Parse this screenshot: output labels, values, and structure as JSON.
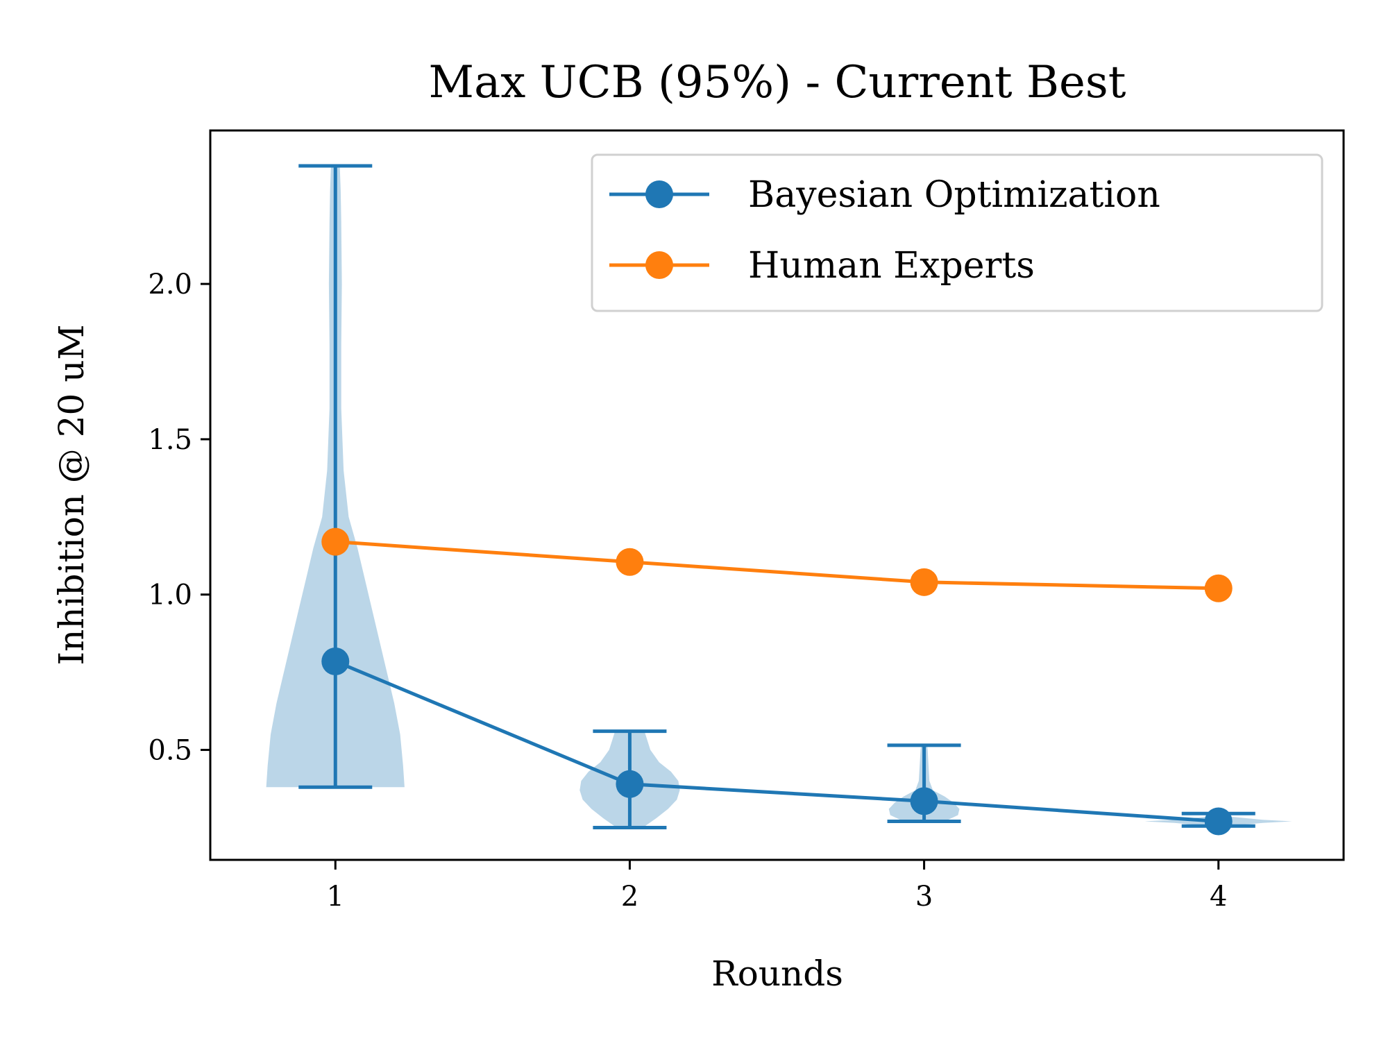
{
  "chart_data": {
    "type": "line",
    "title": "Max UCB (95%) - Current Best",
    "xlabel": "Rounds",
    "ylabel": "Inhibition @ 20 uM",
    "x": [
      1,
      2,
      3,
      4
    ],
    "x_ticks": [
      "1",
      "2",
      "3",
      "4"
    ],
    "y_ticks": [
      "0.5",
      "1.0",
      "1.5",
      "2.0"
    ],
    "xlim": [
      0.575,
      4.425
    ],
    "ylim": [
      0.146,
      2.494
    ],
    "grid": false,
    "legend_position": "upper right",
    "series": [
      {
        "name": "Bayesian Optimization",
        "color": "#1f77b4",
        "marker": "circle",
        "values": [
          0.785,
          0.39,
          0.335,
          0.27
        ],
        "error_min": [
          0.38,
          0.25,
          0.27,
          0.255
        ],
        "error_max": [
          2.38,
          0.56,
          0.515,
          0.295
        ],
        "violins": [
          {
            "x": 1,
            "profile": [
              [
                0.38,
                0.235
              ],
              [
                0.45,
                0.23
              ],
              [
                0.55,
                0.22
              ],
              [
                0.65,
                0.2
              ],
              [
                0.75,
                0.175
              ],
              [
                0.85,
                0.15
              ],
              [
                0.95,
                0.125
              ],
              [
                1.05,
                0.1
              ],
              [
                1.15,
                0.075
              ],
              [
                1.25,
                0.045
              ],
              [
                1.4,
                0.028
              ],
              [
                1.6,
                0.02
              ],
              [
                1.8,
                0.02
              ],
              [
                2.0,
                0.022
              ],
              [
                2.2,
                0.02
              ],
              [
                2.3,
                0.018
              ],
              [
                2.38,
                0.015
              ]
            ]
          },
          {
            "x": 2,
            "profile": [
              [
                0.25,
                0.045
              ],
              [
                0.28,
                0.09
              ],
              [
                0.31,
                0.13
              ],
              [
                0.34,
                0.16
              ],
              [
                0.37,
                0.17
              ],
              [
                0.4,
                0.165
              ],
              [
                0.43,
                0.14
              ],
              [
                0.46,
                0.1
              ],
              [
                0.5,
                0.07
              ],
              [
                0.53,
                0.06
              ],
              [
                0.56,
                0.05
              ]
            ]
          },
          {
            "x": 3,
            "profile": [
              [
                0.27,
                0.07
              ],
              [
                0.29,
                0.115
              ],
              [
                0.31,
                0.12
              ],
              [
                0.33,
                0.1
              ],
              [
                0.35,
                0.07
              ],
              [
                0.37,
                0.03
              ],
              [
                0.4,
                0.018
              ],
              [
                0.45,
                0.015
              ],
              [
                0.5,
                0.012
              ],
              [
                0.515,
                0.01
              ]
            ]
          },
          {
            "x": 4,
            "profile": [
              [
                0.255,
                0.03
              ],
              [
                0.265,
                0.15
              ],
              [
                0.27,
                0.25
              ],
              [
                0.275,
                0.15
              ],
              [
                0.285,
                0.04
              ],
              [
                0.295,
                0.01
              ]
            ]
          }
        ]
      },
      {
        "name": "Human Experts",
        "color": "#ff7f0e",
        "marker": "circle",
        "values": [
          1.17,
          1.105,
          1.04,
          1.02
        ]
      }
    ],
    "violin_color": "#1f77b4",
    "violin_alpha": 0.3
  }
}
